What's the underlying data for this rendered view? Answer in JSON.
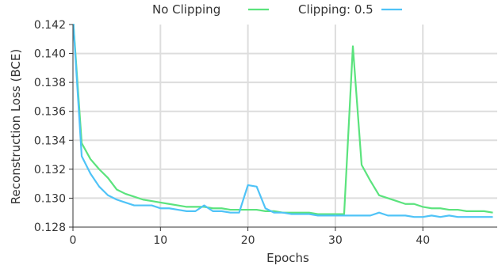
{
  "chart_data": {
    "type": "line",
    "title": "",
    "xlabel": "Epochs",
    "ylabel": "Reconstruction Loss (BCE)",
    "xlim": [
      0,
      48.5
    ],
    "ylim": [
      0.128,
      0.142
    ],
    "grid": true,
    "legend_position": "top-center",
    "xticks": [
      0,
      10,
      20,
      30,
      40
    ],
    "xtick_labels": [
      "0",
      "10",
      "20",
      "30",
      "40"
    ],
    "yticks": [
      0.128,
      0.13,
      0.132,
      0.134,
      0.136,
      0.138,
      0.14,
      0.142
    ],
    "ytick_labels": [
      "0.128",
      "0.130",
      "0.132",
      "0.134",
      "0.136",
      "0.138",
      "0.140",
      "0.142"
    ],
    "series": [
      {
        "name": "No Clipping",
        "color": "#5be37d",
        "x": [
          0,
          1,
          2,
          3,
          4,
          5,
          6,
          7,
          8,
          9,
          10,
          11,
          12,
          13,
          14,
          15,
          16,
          17,
          18,
          19,
          20,
          21,
          22,
          23,
          24,
          25,
          26,
          27,
          28,
          29,
          30,
          31,
          32,
          33,
          34,
          35,
          36,
          37,
          38,
          39,
          40,
          41,
          42,
          43,
          44,
          45,
          46,
          47,
          48
        ],
        "y": [
          0.1425,
          0.1338,
          0.1327,
          0.132,
          0.1314,
          0.1306,
          0.1303,
          0.1301,
          0.1299,
          0.1298,
          0.1297,
          0.1296,
          0.1295,
          0.1294,
          0.1294,
          0.1294,
          0.1293,
          0.1293,
          0.1292,
          0.1292,
          0.1292,
          0.1292,
          0.1291,
          0.1291,
          0.129,
          0.129,
          0.129,
          0.129,
          0.1289,
          0.1289,
          0.1289,
          0.1289,
          0.1405,
          0.1323,
          0.1312,
          0.1302,
          0.13,
          0.1298,
          0.1296,
          0.1296,
          0.1294,
          0.1293,
          0.1293,
          0.1292,
          0.1292,
          0.1291,
          0.1291,
          0.1291,
          0.129
        ]
      },
      {
        "name": "Clipping: 0.5",
        "color": "#4fc3f7",
        "x": [
          0,
          1,
          2,
          3,
          4,
          5,
          6,
          7,
          8,
          9,
          10,
          11,
          12,
          13,
          14,
          15,
          16,
          17,
          18,
          19,
          20,
          21,
          22,
          23,
          24,
          25,
          26,
          27,
          28,
          29,
          30,
          31,
          32,
          33,
          34,
          35,
          36,
          37,
          38,
          39,
          40,
          41,
          42,
          43,
          44,
          45,
          46,
          47,
          48
        ],
        "y": [
          0.1425,
          0.1329,
          0.1317,
          0.1308,
          0.1302,
          0.1299,
          0.1297,
          0.1295,
          0.1295,
          0.1295,
          0.1293,
          0.1293,
          0.1292,
          0.1291,
          0.1291,
          0.1295,
          0.1291,
          0.1291,
          0.129,
          0.129,
          0.1309,
          0.1308,
          0.1293,
          0.129,
          0.129,
          0.1289,
          0.1289,
          0.1289,
          0.1288,
          0.1288,
          0.1288,
          0.1288,
          0.1288,
          0.1288,
          0.1288,
          0.129,
          0.1288,
          0.1288,
          0.1288,
          0.1287,
          0.1287,
          0.1288,
          0.1287,
          0.1288,
          0.1287,
          0.1287,
          0.1287,
          0.1287,
          0.1287
        ]
      }
    ]
  }
}
